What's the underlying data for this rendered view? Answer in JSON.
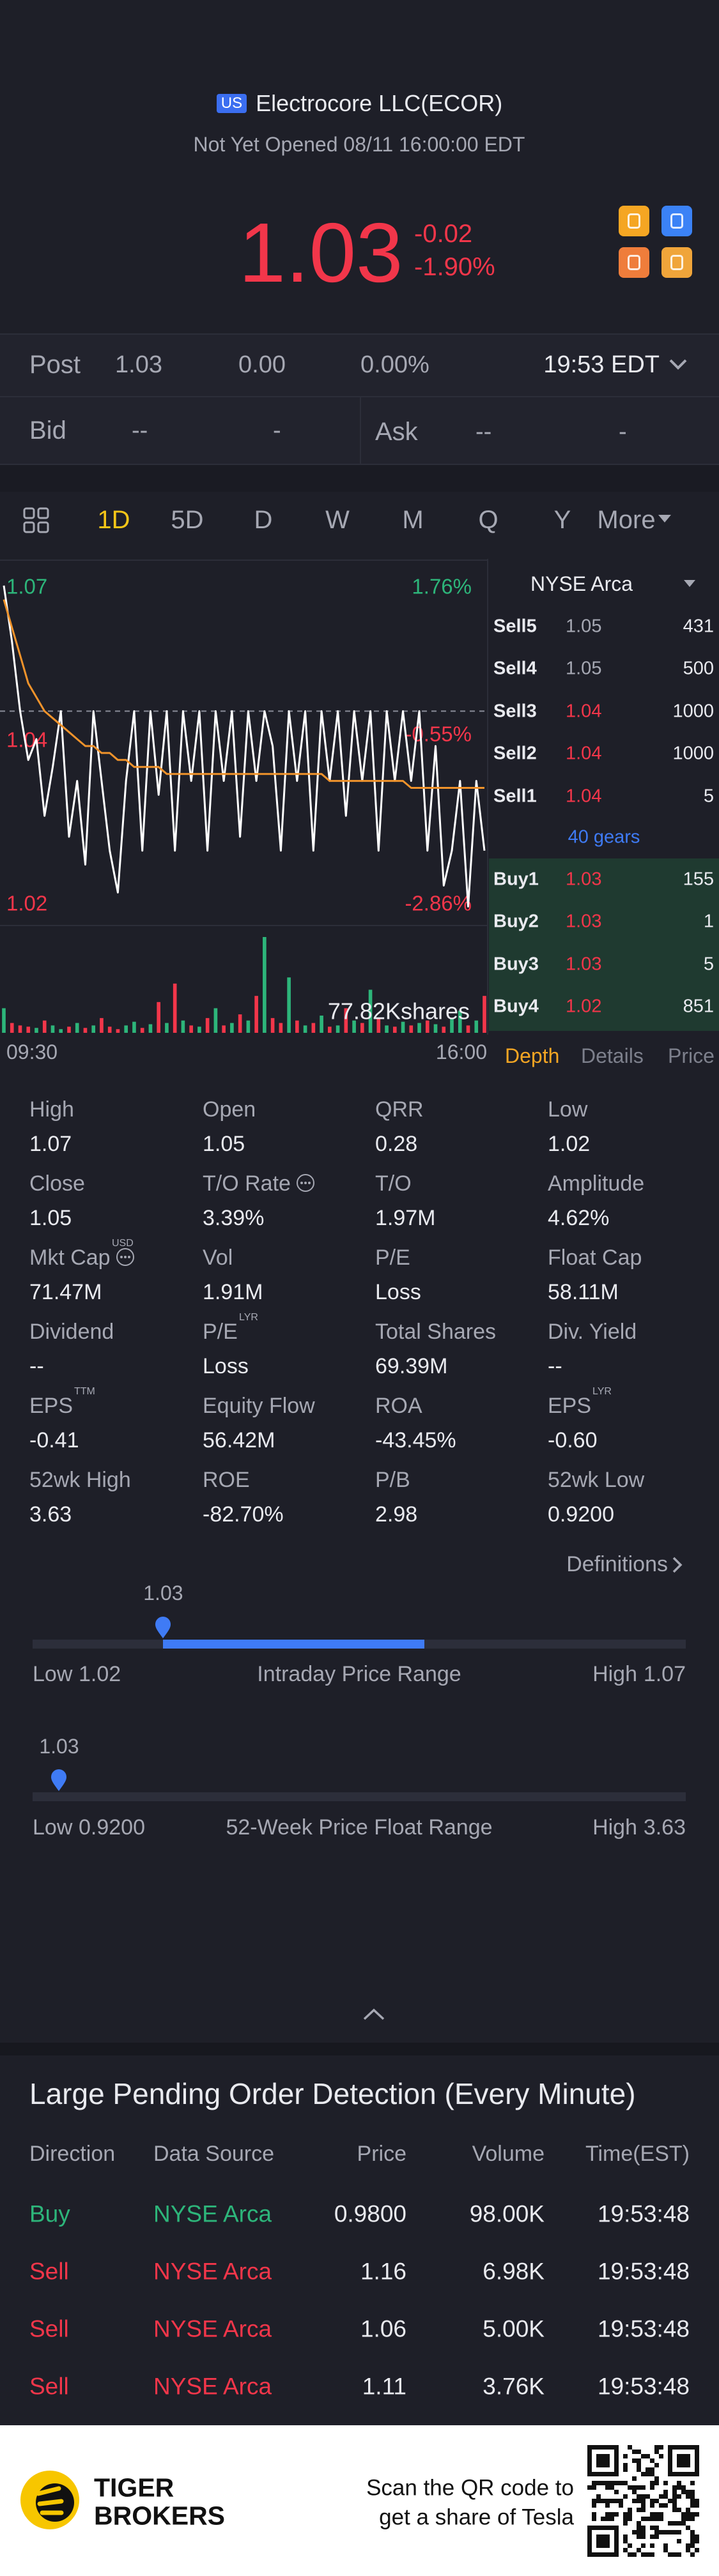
{
  "header": {
    "badge": "US",
    "name": "Electrocore LLC(ECOR)",
    "status": "Not Yet Opened 08/11 16:00:00 EDT"
  },
  "quote": {
    "price": "1.03",
    "change": "-0.02",
    "change_pct": "-1.90%"
  },
  "post": {
    "label": "Post",
    "price": "1.03",
    "change": "0.00",
    "change_pct": "0.00%",
    "time": "19:53 EDT"
  },
  "bid": {
    "label": "Bid",
    "price": "--",
    "size": "-"
  },
  "ask": {
    "label": "Ask",
    "price": "--",
    "size": "-"
  },
  "tabs": [
    "1D",
    "5D",
    "D",
    "W",
    "M",
    "Q",
    "Y",
    "More"
  ],
  "chart_data": {
    "type": "line",
    "ylim": [
      1.02,
      1.07
    ],
    "yticks": [
      1.07,
      {
        "value": 1.0442,
        "label": "1.04"
      },
      1.02
    ],
    "y2lim": [
      -2.86,
      1.76
    ],
    "y2ticks": [
      {
        "value": 1.76,
        "label": "1.76%"
      },
      {
        "value": -0.55,
        "label": "-0.55%"
      },
      {
        "value": -2.86,
        "label": "-2.86%"
      }
    ],
    "reference_line": 1.05,
    "xtick_labels": [
      "09:30",
      "16:00"
    ],
    "price": {
      "color": "#ffffff",
      "values": [
        1.068,
        1.06,
        1.05,
        1.043,
        1.046,
        1.035,
        1.042,
        1.05,
        1.032,
        1.04,
        1.028,
        1.05,
        1.04,
        1.03,
        1.024,
        1.04,
        1.05,
        1.03,
        1.05,
        1.038,
        1.05,
        1.03,
        1.05,
        1.04,
        1.05,
        1.03,
        1.05,
        1.04,
        1.05,
        1.032,
        1.05,
        1.04,
        1.05,
        1.045,
        1.03,
        1.05,
        1.04,
        1.05,
        1.03,
        1.05,
        1.04,
        1.05,
        1.035,
        1.05,
        1.04,
        1.05,
        1.03,
        1.05,
        1.04,
        1.05,
        1.04,
        1.05,
        1.03,
        1.045,
        1.025,
        1.03,
        1.04,
        1.022,
        1.04,
        1.03
      ]
    },
    "average": {
      "color": "#f0932b",
      "values": [
        1.066,
        1.062,
        1.058,
        1.054,
        1.052,
        1.05,
        1.049,
        1.048,
        1.047,
        1.046,
        1.045,
        1.045,
        1.044,
        1.044,
        1.043,
        1.043,
        1.042,
        1.042,
        1.042,
        1.042,
        1.041,
        1.041,
        1.041,
        1.041,
        1.041,
        1.041,
        1.041,
        1.041,
        1.041,
        1.041,
        1.041,
        1.041,
        1.041,
        1.041,
        1.041,
        1.041,
        1.041,
        1.041,
        1.041,
        1.041,
        1.04,
        1.04,
        1.04,
        1.04,
        1.04,
        1.04,
        1.04,
        1.04,
        1.04,
        1.04,
        1.039,
        1.039,
        1.039,
        1.039,
        1.039,
        1.039,
        1.039,
        1.039,
        1.039,
        1.039
      ]
    },
    "volume": {
      "ylim": [
        0,
        77.82
      ],
      "label": "77.82Kshares",
      "up_color": "#2db57a",
      "down_color": "#f2364a",
      "values": [
        20,
        8,
        6,
        5,
        4,
        10,
        6,
        3,
        5,
        8,
        4,
        6,
        12,
        5,
        3,
        6,
        9,
        4,
        7,
        25,
        8,
        40,
        10,
        6,
        5,
        12,
        20,
        6,
        8,
        15,
        10,
        30,
        77.82,
        12,
        8,
        45,
        10,
        6,
        8,
        14,
        5,
        6,
        20,
        10,
        8,
        35,
        12,
        6,
        5,
        9,
        6,
        8,
        10,
        7,
        5,
        12,
        18,
        6,
        10,
        30
      ]
    }
  },
  "order_book": {
    "exchange": "NYSE Arca",
    "asks": [
      {
        "label": "Sell5",
        "price": "1.05",
        "size": "431",
        "color": "#a6a8b3"
      },
      {
        "label": "Sell4",
        "price": "1.05",
        "size": "500",
        "color": "#a6a8b3"
      },
      {
        "label": "Sell3",
        "price": "1.04",
        "size": "1000",
        "color": "#f2364a"
      },
      {
        "label": "Sell2",
        "price": "1.04",
        "size": "1000",
        "color": "#f2364a"
      },
      {
        "label": "Sell1",
        "price": "1.04",
        "size": "5",
        "color": "#f2364a"
      }
    ],
    "gears": "40 gears",
    "bids": [
      {
        "label": "Buy1",
        "price": "1.03",
        "size": "155",
        "color": "#f2364a"
      },
      {
        "label": "Buy2",
        "price": "1.03",
        "size": "1",
        "color": "#f2364a"
      },
      {
        "label": "Buy3",
        "price": "1.03",
        "size": "5",
        "color": "#f2364a"
      },
      {
        "label": "Buy4",
        "price": "1.02",
        "size": "851",
        "color": "#f2364a"
      }
    ]
  },
  "panel_tabs": [
    "Depth",
    "Details",
    "Price"
  ],
  "stats": [
    {
      "label": "High",
      "value": "1.07"
    },
    {
      "label": "Open",
      "value": "1.05"
    },
    {
      "label": "QRR",
      "value": "0.28"
    },
    {
      "label": "Low",
      "value": "1.02"
    },
    {
      "label": "Close",
      "value": "1.05"
    },
    {
      "label": "T/O Rate",
      "value": "3.39%",
      "info": true
    },
    {
      "label": "T/O",
      "value": "1.97M"
    },
    {
      "label": "Amplitude",
      "value": "4.62%"
    },
    {
      "label": "Mkt Cap",
      "value": "71.47M",
      "sup": "USD",
      "info": true
    },
    {
      "label": "Vol",
      "value": "1.91M"
    },
    {
      "label": "P/E",
      "value": "Loss"
    },
    {
      "label": "Float Cap",
      "value": "58.11M"
    },
    {
      "label": "Dividend",
      "value": "--"
    },
    {
      "label": "P/E",
      "value": "Loss",
      "sup": "LYR"
    },
    {
      "label": "Total Shares",
      "value": "69.39M"
    },
    {
      "label": "Div. Yield",
      "value": "--"
    },
    {
      "label": "EPS",
      "value": "-0.41",
      "sup": "TTM"
    },
    {
      "label": "Equity Flow",
      "value": "56.42M"
    },
    {
      "label": "ROA",
      "value": "-43.45%"
    },
    {
      "label": "EPS",
      "value": "-0.60",
      "sup": "LYR"
    },
    {
      "label": "52wk High",
      "value": "3.63"
    },
    {
      "label": "ROE",
      "value": "-82.70%"
    },
    {
      "label": "P/B",
      "value": "2.98"
    },
    {
      "label": "52wk Low",
      "value": "0.9200"
    }
  ],
  "definitions": "Definitions",
  "intraday_range": {
    "current": "1.03",
    "low_prefix": "Low",
    "low": "1.02",
    "title": "Intraday Price Range",
    "high_prefix": "High",
    "high": "1.07"
  },
  "week52_range": {
    "current": "1.03",
    "low_prefix": "Low",
    "low": "0.9200",
    "title": "52-Week Price Float Range",
    "high_prefix": "High",
    "high": "3.63"
  },
  "pending": {
    "title": "Large Pending Order Detection (Every Minute)",
    "columns": [
      "Direction",
      "Data Source",
      "Price",
      "Volume",
      "Time(EST)"
    ],
    "rows": [
      {
        "cells": [
          "Buy",
          "NYSE Arca",
          "0.9800",
          "98.00K",
          "19:53:48"
        ],
        "color": "#2db57a"
      },
      {
        "cells": [
          "Sell",
          "NYSE Arca",
          "1.16",
          "6.98K",
          "19:53:48"
        ],
        "color": "#f2364a"
      },
      {
        "cells": [
          "Sell",
          "NYSE Arca",
          "1.06",
          "5.00K",
          "19:53:48"
        ],
        "color": "#f2364a"
      },
      {
        "cells": [
          "Sell",
          "NYSE Arca",
          "1.11",
          "3.76K",
          "19:53:48"
        ],
        "color": "#f2364a"
      }
    ]
  },
  "footer": {
    "brand_1": "TIGER",
    "brand_2": "BROKERS",
    "qr_text_1": "Scan the QR code to",
    "qr_text_2": "get a share of Tesla"
  }
}
